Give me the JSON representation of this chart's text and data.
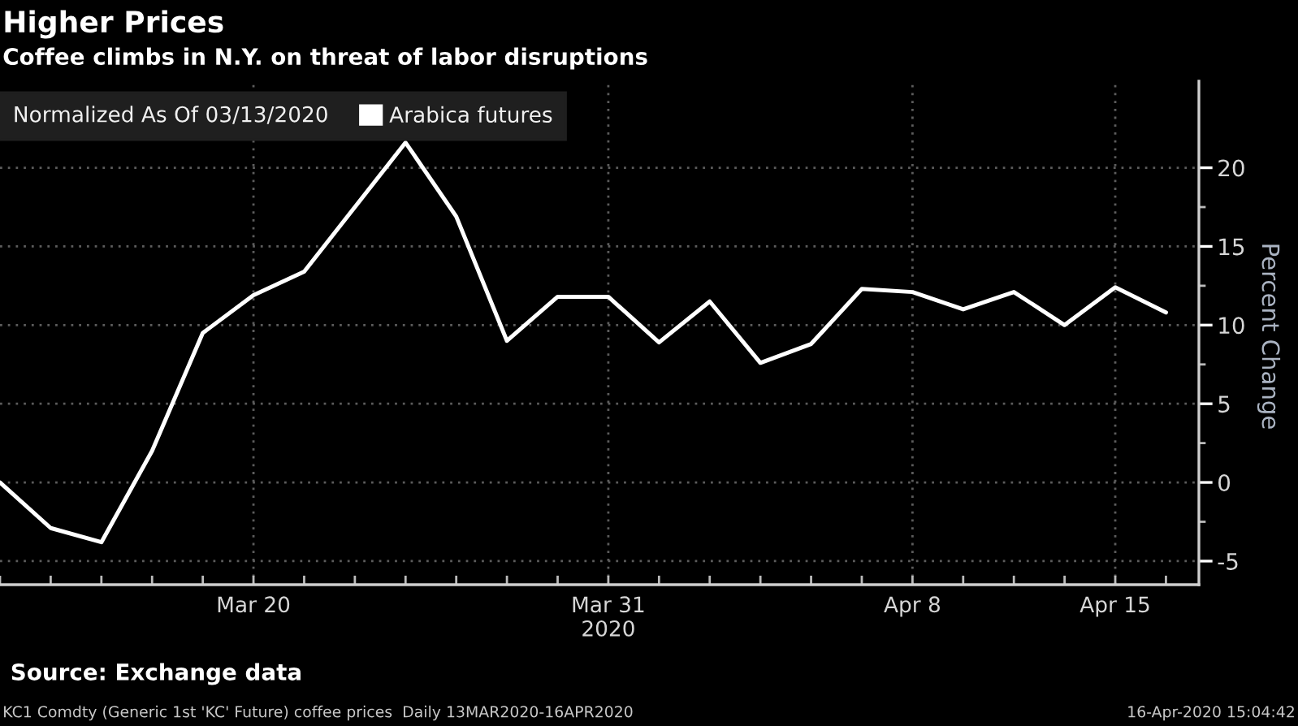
{
  "chart_data": {
    "type": "line",
    "title": "Higher Prices",
    "subtitle": "Coffee climbs in N.Y. on threat of labor disruptions",
    "ylabel": "Percent Change",
    "legend_title": "Normalized As Of 03/13/2020",
    "categories": [
      null,
      null,
      null,
      null,
      null,
      "Mar 20",
      null,
      null,
      null,
      null,
      null,
      null,
      "Mar 31\n2020",
      null,
      null,
      null,
      null,
      null,
      "Apr 8",
      null,
      null,
      null,
      "Apr 15",
      null
    ],
    "series": [
      {
        "name": "Arabica futures",
        "color": "#ffffff",
        "values": [
          0,
          -2.9,
          -3.8,
          2.0,
          9.5,
          11.9,
          13.4,
          17.5,
          21.6,
          16.9,
          9.0,
          11.8,
          11.8,
          8.9,
          11.5,
          7.6,
          8.8,
          12.3,
          12.1,
          11.0,
          12.1,
          10.0,
          12.4,
          10.8
        ]
      }
    ],
    "ylim": [
      -6.5,
      25.5
    ],
    "yticks": [
      -5,
      0,
      5,
      10,
      15,
      20
    ],
    "grid": true,
    "legend": "top left",
    "annotations": [
      "Source: Exchange data",
      "KC1 Comdty (Generic 1st 'KC' Future) coffee prices  Daily 13MAR2020-16APR2020",
      "16-Apr-2020 15:04:42"
    ]
  }
}
